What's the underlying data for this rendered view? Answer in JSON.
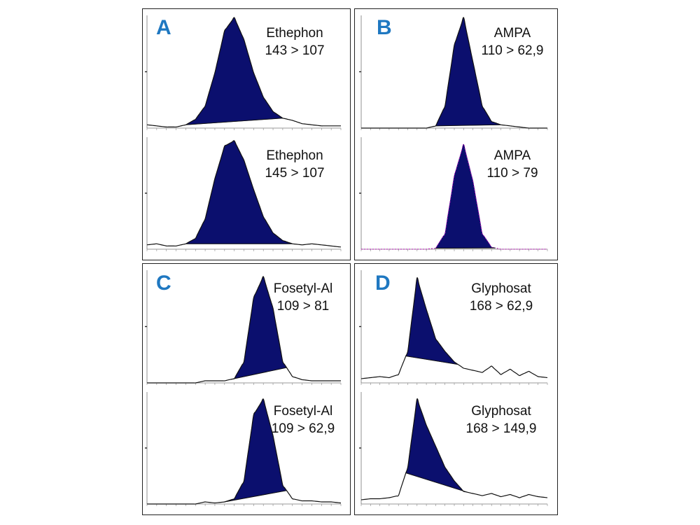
{
  "chart_data": [
    {
      "panel": "A",
      "type": "line",
      "traces": [
        {
          "compound": "Ethephon",
          "transition": "143 > 107",
          "x": [
            0,
            5,
            10,
            15,
            20,
            25,
            30,
            35,
            40,
            45,
            50,
            55,
            60,
            65,
            70,
            75,
            80,
            85,
            90,
            95,
            100
          ],
          "y": [
            3,
            2,
            1,
            1,
            3,
            8,
            20,
            50,
            88,
            100,
            80,
            50,
            28,
            15,
            9,
            7,
            4,
            3,
            2,
            2,
            2
          ],
          "peak_window": [
            20,
            70
          ]
        },
        {
          "compound": "Ethephon",
          "transition": "145 > 107",
          "x": [
            0,
            5,
            10,
            15,
            20,
            25,
            30,
            35,
            40,
            45,
            50,
            55,
            60,
            65,
            70,
            75,
            80,
            85,
            90,
            95,
            100
          ],
          "y": [
            4,
            5,
            3,
            3,
            5,
            10,
            28,
            65,
            95,
            100,
            82,
            55,
            30,
            15,
            8,
            5,
            4,
            5,
            4,
            3,
            2
          ],
          "peak_window": [
            20,
            75
          ]
        }
      ]
    },
    {
      "panel": "B",
      "type": "line",
      "traces": [
        {
          "compound": "AMPA",
          "transition": "110 > 62,9",
          "x": [
            0,
            5,
            10,
            15,
            20,
            25,
            30,
            35,
            40,
            45,
            50,
            55,
            60,
            65,
            70,
            75,
            80,
            85,
            90,
            95,
            100
          ],
          "y": [
            0,
            0,
            0,
            0,
            0,
            0,
            0,
            0,
            2,
            20,
            75,
            100,
            60,
            20,
            6,
            3,
            2,
            1,
            0,
            0,
            0
          ],
          "peak_window": [
            40,
            75
          ]
        },
        {
          "compound": "AMPA",
          "transition": "110 > 79",
          "x": [
            0,
            5,
            10,
            15,
            20,
            25,
            30,
            35,
            40,
            45,
            50,
            55,
            60,
            65,
            70,
            75,
            80,
            85,
            90,
            95,
            100
          ],
          "y": [
            0,
            0,
            0,
            0,
            0,
            0,
            0,
            0,
            1,
            15,
            70,
            100,
            65,
            15,
            2,
            0,
            0,
            0,
            0,
            0,
            0
          ],
          "peak_window": [
            40,
            72
          ]
        }
      ]
    },
    {
      "panel": "C",
      "type": "line",
      "traces": [
        {
          "compound": "Fosetyl-Al",
          "transition": "109 > 81",
          "x": [
            0,
            5,
            10,
            15,
            20,
            25,
            30,
            35,
            40,
            45,
            50,
            55,
            60,
            65,
            70,
            75,
            80,
            85,
            90,
            95,
            100
          ],
          "y": [
            0,
            0,
            0,
            0,
            0,
            0,
            2,
            2,
            2,
            4,
            20,
            80,
            100,
            70,
            20,
            6,
            3,
            2,
            2,
            2,
            2
          ],
          "peak_window": [
            43,
            72
          ]
        },
        {
          "compound": "Fosetyl-Al",
          "transition": "109 > 62,9",
          "x": [
            0,
            5,
            10,
            15,
            20,
            25,
            30,
            35,
            40,
            45,
            50,
            55,
            60,
            65,
            70,
            75,
            80,
            85,
            90,
            95,
            100
          ],
          "y": [
            0,
            0,
            0,
            0,
            0,
            0,
            2,
            1,
            2,
            5,
            22,
            85,
            100,
            65,
            18,
            5,
            3,
            3,
            2,
            2,
            1
          ],
          "peak_window": [
            40,
            72
          ]
        }
      ]
    },
    {
      "panel": "D",
      "type": "line",
      "traces": [
        {
          "compound": "Glyphosat",
          "transition": "168 > 62,9",
          "x": [
            0,
            5,
            10,
            15,
            20,
            25,
            30,
            35,
            40,
            45,
            50,
            55,
            60,
            65,
            70,
            75,
            80,
            85,
            90,
            95,
            100
          ],
          "y": [
            4,
            5,
            6,
            5,
            8,
            30,
            100,
            70,
            42,
            30,
            20,
            14,
            12,
            10,
            16,
            8,
            13,
            7,
            11,
            6,
            5
          ],
          "peak_window": [
            24,
            52
          ]
        },
        {
          "compound": "Glyphosat",
          "transition": "168 > 149,9",
          "x": [
            0,
            5,
            10,
            15,
            20,
            25,
            30,
            35,
            40,
            45,
            50,
            55,
            60,
            65,
            70,
            75,
            80,
            85,
            90,
            95,
            100
          ],
          "y": [
            4,
            5,
            5,
            6,
            8,
            35,
            100,
            75,
            55,
            35,
            22,
            12,
            10,
            8,
            10,
            7,
            9,
            6,
            9,
            7,
            6
          ],
          "peak_window": [
            24,
            57
          ]
        }
      ]
    }
  ],
  "colors": {
    "peak_fill": "#0b0f6e",
    "trace_line": "#111111",
    "letter": "#1f78c1",
    "amp_baseline": "#b000b0"
  }
}
